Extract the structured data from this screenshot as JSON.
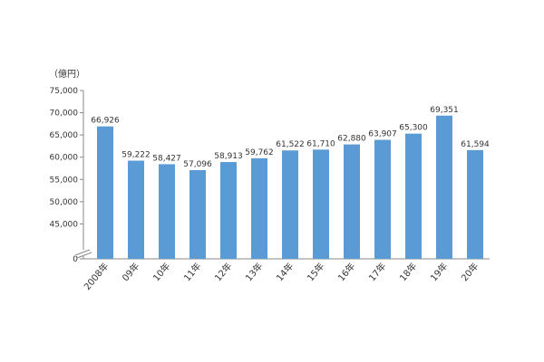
{
  "chart_data": {
    "type": "bar",
    "unit_label": "（億円）",
    "categories": [
      "2008年",
      "09年",
      "10年",
      "11年",
      "12年",
      "13年",
      "14年",
      "15年",
      "16年",
      "17年",
      "18年",
      "19年",
      "20年"
    ],
    "values": [
      66926,
      59222,
      58427,
      57096,
      58913,
      59762,
      61522,
      61710,
      62880,
      63907,
      65300,
      69351,
      61594
    ],
    "data_labels": [
      "66,926",
      "59,222",
      "58,427",
      "57,096",
      "58,913",
      "59,762",
      "61,522",
      "61,710",
      "62,880",
      "63,907",
      "65,300",
      "69,351",
      "61,594"
    ],
    "y_ticks": [
      0,
      45000,
      50000,
      55000,
      60000,
      65000,
      70000,
      75000
    ],
    "y_tick_labels": [
      "0",
      "45,000",
      "50,000",
      "55,000",
      "60,000",
      "65,000",
      "70,000",
      "75,000"
    ],
    "ylim": [
      40000,
      75000
    ],
    "axis_break": true,
    "grid": false,
    "colors": {
      "bar": "#5b9bd5",
      "axis": "#888888"
    }
  }
}
